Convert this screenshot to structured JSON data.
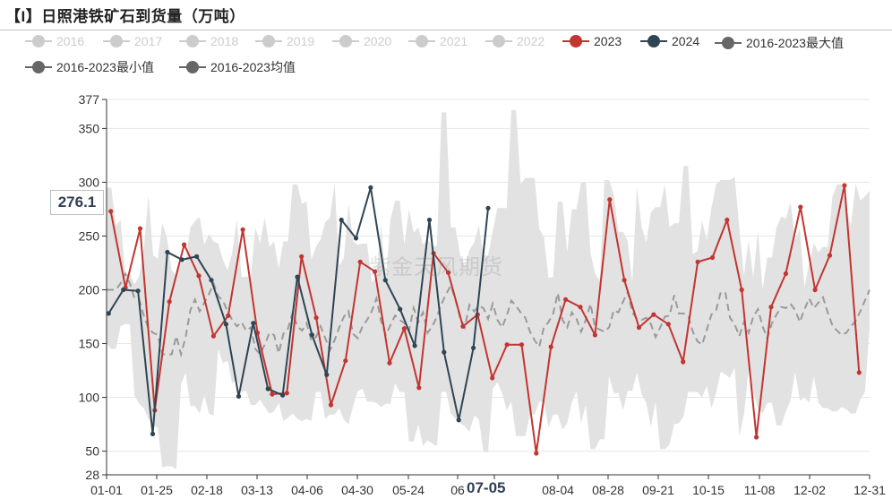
{
  "title": "【I】日照港铁矿石到货量（万吨）",
  "watermark": "紫金天风期货",
  "hover": {
    "value": "276.1",
    "x_label": "07-05"
  },
  "chart_data": {
    "type": "line",
    "title": "【I】日照港铁矿石到货量（万吨）",
    "legend_placement": "top",
    "grid": true,
    "ylim": [
      28,
      377
    ],
    "y_ticks": [
      28,
      50,
      100,
      150,
      200,
      250,
      300,
      350,
      377
    ],
    "x_ticks": [
      "01-01",
      "01-25",
      "02-18",
      "03-13",
      "04-06",
      "04-30",
      "05-24",
      "06",
      "07-05",
      "08-04",
      "08-28",
      "09-21",
      "10-15",
      "11-08",
      "12-02",
      "12-31"
    ],
    "colors": {
      "s2023": "#c23531",
      "s2024": "#2f4554",
      "range": "#e2e2e2",
      "avg": "#9a9a9a",
      "legend_off": "#cccccc",
      "legend_stat": "#666666"
    },
    "legend": [
      {
        "name": "2016",
        "color": "#cccccc",
        "active": false
      },
      {
        "name": "2017",
        "color": "#cccccc",
        "active": false
      },
      {
        "name": "2018",
        "color": "#cccccc",
        "active": false
      },
      {
        "name": "2019",
        "color": "#cccccc",
        "active": false
      },
      {
        "name": "2020",
        "color": "#cccccc",
        "active": false
      },
      {
        "name": "2021",
        "color": "#cccccc",
        "active": false
      },
      {
        "name": "2022",
        "color": "#cccccc",
        "active": false
      },
      {
        "name": "2023",
        "color": "#c23531",
        "active": true
      },
      {
        "name": "2024",
        "color": "#2f4554",
        "active": true
      },
      {
        "name": "2016-2023最大值",
        "color": "#666666",
        "active": true
      },
      {
        "name": "2016-2023最小值",
        "color": "#666666",
        "active": true
      },
      {
        "name": "2016-2023均值",
        "color": "#666666",
        "active": true
      }
    ],
    "series": [
      {
        "name": "2023",
        "points": [
          [
            "01-03",
            273
          ],
          [
            "01-10",
            202
          ],
          [
            "01-17",
            257
          ],
          [
            "01-24",
            88
          ],
          [
            "01-31",
            189
          ],
          [
            "02-07",
            242
          ],
          [
            "02-14",
            213
          ],
          [
            "02-21",
            157
          ],
          [
            "02-28",
            176
          ],
          [
            "03-07",
            256
          ],
          [
            "03-14",
            160
          ],
          [
            "03-21",
            103
          ],
          [
            "03-28",
            104
          ],
          [
            "04-04",
            231
          ],
          [
            "04-11",
            174
          ],
          [
            "04-18",
            93
          ],
          [
            "04-25",
            134
          ],
          [
            "05-02",
            226
          ],
          [
            "05-09",
            217
          ],
          [
            "05-16",
            132
          ],
          [
            "05-23",
            164
          ],
          [
            "05-30",
            109
          ],
          [
            "06-06",
            234
          ],
          [
            "06-13",
            216
          ],
          [
            "06-20",
            166
          ],
          [
            "06-27",
            177
          ],
          [
            "07-04",
            118
          ],
          [
            "07-11",
            149
          ],
          [
            "07-18",
            149
          ],
          [
            "07-25",
            48
          ],
          [
            "08-01",
            147
          ],
          [
            "08-08",
            191
          ],
          [
            "08-15",
            184
          ],
          [
            "08-22",
            158
          ],
          [
            "08-29",
            284
          ],
          [
            "09-05",
            209
          ],
          [
            "09-12",
            165
          ],
          [
            "09-19",
            177
          ],
          [
            "09-26",
            168
          ],
          [
            "10-03",
            133
          ],
          [
            "10-10",
            226
          ],
          [
            "10-17",
            230
          ],
          [
            "10-24",
            265
          ],
          [
            "10-31",
            200
          ],
          [
            "11-07",
            63
          ],
          [
            "11-14",
            184
          ],
          [
            "11-21",
            215
          ],
          [
            "11-28",
            277
          ],
          [
            "12-05",
            200
          ],
          [
            "12-12",
            232
          ],
          [
            "12-19",
            297
          ],
          [
            "12-26",
            123
          ]
        ]
      },
      {
        "name": "2024",
        "points": [
          [
            "01-02",
            178
          ],
          [
            "01-09",
            200
          ],
          [
            "01-16",
            199
          ],
          [
            "01-23",
            66
          ],
          [
            "01-30",
            235
          ],
          [
            "02-06",
            228
          ],
          [
            "02-13",
            231
          ],
          [
            "02-20",
            209
          ],
          [
            "02-27",
            168
          ],
          [
            "03-05",
            101
          ],
          [
            "03-12",
            169
          ],
          [
            "03-19",
            108
          ],
          [
            "03-26",
            102
          ],
          [
            "04-02",
            212
          ],
          [
            "04-09",
            158
          ],
          [
            "04-16",
            121
          ],
          [
            "04-23",
            265
          ],
          [
            "04-30",
            248
          ],
          [
            "05-07",
            295
          ],
          [
            "05-14",
            209
          ],
          [
            "05-21",
            182
          ],
          [
            "05-28",
            148
          ],
          [
            "06-04",
            265
          ],
          [
            "06-11",
            142
          ],
          [
            "06-18",
            79
          ],
          [
            "06-25",
            146
          ],
          [
            "07-02",
            276
          ]
        ]
      },
      {
        "name": "2016-2023最大值",
        "values": [
          295,
          295,
          260,
          265,
          215,
          215,
          205,
          213,
          238,
          288,
          232,
          229,
          262,
          248,
          218,
          213,
          225,
          226,
          258,
          264,
          268,
          242,
          252,
          245,
          243,
          228,
          218,
          235,
          265,
          212,
          212,
          213,
          258,
          243,
          267,
          240,
          245,
          220,
          245,
          245,
          298,
          298,
          280,
          282,
          228,
          240,
          247,
          263,
          267,
          299,
          222,
          230,
          280,
          245,
          242,
          243,
          243,
          207,
          212,
          260,
          206,
          265,
          283,
          283,
          242,
          275,
          253,
          258,
          242,
          247,
          240,
          241,
          365,
          365,
          258,
          258,
          232,
          222,
          237,
          244,
          260,
          232,
          232,
          255,
          276,
          276,
          276,
          367,
          367,
          298,
          304,
          304,
          304,
          257,
          249,
          211,
          212,
          282,
          282,
          235,
          275,
          275,
          300,
          300,
          235,
          215,
          208,
          302,
          302,
          289,
          254,
          254,
          245,
          207,
          296,
          259,
          244,
          272,
          277,
          277,
          298,
          258,
          262,
          262,
          315,
          315,
          233,
          236,
          264,
          246,
          276,
          298,
          302,
          302,
          302,
          305,
          258,
          213,
          246,
          211,
          255,
          200,
          230,
          230,
          258,
          268,
          266,
          282,
          246,
          257,
          202,
          225,
          243,
          235,
          240,
          240,
          286,
          298,
          298,
          276,
          260,
          299,
          283,
          287,
          292
        ]
      },
      {
        "name": "2016-2023最小值",
        "values": [
          150,
          145,
          145,
          166,
          168,
          168,
          102,
          94,
          90,
          80,
          73,
          72,
          35,
          36,
          36,
          33,
          112,
          123,
          92,
          92,
          85,
          102,
          85,
          83,
          145,
          132,
          134,
          113,
          117,
          105,
          106,
          93,
          93,
          98,
          91,
          85,
          87,
          95,
          78,
          81,
          85,
          80,
          78,
          80,
          78,
          105,
          105,
          80,
          84,
          84,
          90,
          79,
          75,
          92,
          106,
          108,
          96,
          96,
          95,
          91,
          94,
          94,
          113,
          105,
          105,
          59,
          59,
          75,
          55,
          60,
          57,
          55,
          105,
          105,
          85,
          80,
          76,
          73,
          68,
          83,
          80,
          49,
          49,
          108,
          114,
          104,
          88,
          96,
          64,
          64,
          64,
          84,
          84,
          96,
          96,
          72,
          84,
          84,
          70,
          76,
          95,
          106,
          76,
          93,
          52,
          52,
          61,
          61,
          120,
          104,
          104,
          88,
          106,
          106,
          123,
          103,
          95,
          73,
          96,
          52,
          52,
          56,
          75,
          76,
          82,
          105,
          105,
          105,
          100,
          111,
          90,
          104,
          124,
          121,
          118,
          128,
          64,
          84,
          125,
          105,
          90,
          85,
          95,
          95,
          74,
          74,
          87,
          97,
          124,
          97,
          100,
          95,
          120,
          95,
          90,
          90,
          87,
          87,
          91,
          89,
          85,
          85,
          98,
          105,
          165
        ]
      },
      {
        "name": "2016-2023均值",
        "values": [
          200,
          200,
          200,
          206,
          215,
          206,
          192,
          191,
          176,
          164,
          160,
          158,
          140,
          140,
          140,
          157,
          140,
          156,
          181,
          191,
          180,
          188,
          196,
          206,
          194,
          190,
          180,
          172,
          166,
          170,
          162,
          165,
          145,
          140,
          149,
          160,
          158,
          141,
          159,
          164,
          179,
          166,
          162,
          169,
          153,
          156,
          166,
          155,
          144,
          153,
          165,
          175,
          180,
          159,
          155,
          166,
          172,
          180,
          192,
          171,
          158,
          167,
          176,
          172,
          169,
          162,
          183,
          170,
          179,
          160,
          166,
          175,
          187,
          196,
          204,
          191,
          174,
          165,
          186,
          180,
          185,
          183,
          173,
          187,
          172,
          165,
          176,
          190,
          185,
          179,
          174,
          161,
          153,
          147,
          165,
          170,
          178,
          197,
          172,
          165,
          179,
          173,
          161,
          172,
          187,
          165,
          163,
          161,
          165,
          181,
          179,
          189,
          198,
          179,
          173,
          172,
          174,
          168,
          156,
          165,
          175,
          176,
          195,
          178,
          178,
          176,
          161,
          152,
          149,
          163,
          177,
          181,
          198,
          197,
          174,
          168,
          157,
          170,
          160,
          175,
          182,
          166,
          155,
          169,
          177,
          184,
          183,
          187,
          181,
          170,
          182,
          192,
          183,
          188,
          193,
          179,
          167,
          162,
          158,
          160,
          166,
          171,
          180,
          190,
          200
        ]
      }
    ]
  }
}
